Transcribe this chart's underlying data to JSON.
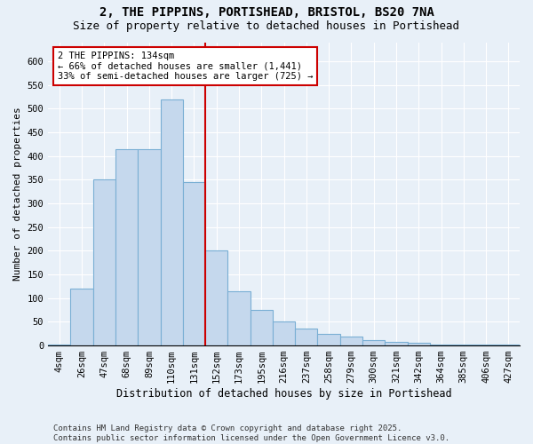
{
  "title1": "2, THE PIPPINS, PORTISHEAD, BRISTOL, BS20 7NA",
  "title2": "Size of property relative to detached houses in Portishead",
  "xlabel": "Distribution of detached houses by size in Portishead",
  "ylabel": "Number of detached properties",
  "categories": [
    "4sqm",
    "26sqm",
    "47sqm",
    "68sqm",
    "89sqm",
    "110sqm",
    "131sqm",
    "152sqm",
    "173sqm",
    "195sqm",
    "216sqm",
    "237sqm",
    "258sqm",
    "279sqm",
    "300sqm",
    "321sqm",
    "342sqm",
    "364sqm",
    "385sqm",
    "406sqm",
    "427sqm"
  ],
  "values": [
    2,
    120,
    350,
    415,
    415,
    520,
    345,
    200,
    115,
    75,
    50,
    35,
    25,
    18,
    12,
    8,
    5,
    2,
    2,
    2,
    2
  ],
  "bar_color": "#c5d8ed",
  "bar_edge_color": "#7aafd4",
  "background_color": "#e8f0f8",
  "grid_color": "#ffffff",
  "marker_color": "#cc0000",
  "annotation_text": "2 THE PIPPINS: 134sqm\n← 66% of detached houses are smaller (1,441)\n33% of semi-detached houses are larger (725) →",
  "annotation_box_color": "#ffffff",
  "annotation_box_edge": "#cc0000",
  "footer": "Contains HM Land Registry data © Crown copyright and database right 2025.\nContains public sector information licensed under the Open Government Licence v3.0.",
  "ylim": [
    0,
    640
  ],
  "yticks": [
    0,
    50,
    100,
    150,
    200,
    250,
    300,
    350,
    400,
    450,
    500,
    550,
    600
  ],
  "marker_bin_index": 6,
  "title1_fontsize": 10,
  "title2_fontsize": 9,
  "tick_fontsize": 7.5,
  "ylabel_fontsize": 8,
  "xlabel_fontsize": 8.5,
  "annotation_fontsize": 7.5,
  "footer_fontsize": 6.5
}
